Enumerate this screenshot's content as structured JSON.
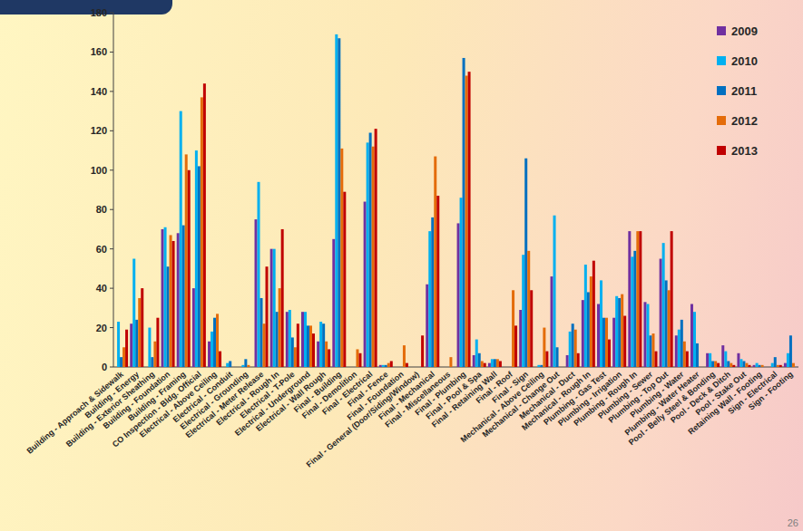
{
  "chart_data": {
    "type": "bar",
    "categories": [
      "Building - Approach & Sidewalk",
      "Building - Energy",
      "Building - Exterior Sheathing",
      "Building - Foundation",
      "Building - Framing",
      "CO Inspection - Bldg. Official",
      "Electrical - Above Ceiling",
      "Electrical - Conduit",
      "Electrical - Grounding",
      "Electrical - Meter Release",
      "Electrical - Rough In",
      "Electrical - T-Pole",
      "Electrical - Underground",
      "Electrical - Wall Rough",
      "Final - Building",
      "Final - Demolition",
      "Final - Electrical",
      "Final - Fence",
      "Final - Foundation",
      "Final - General (Door/Siding/Window)",
      "Final - Mechanical",
      "Final - Miscellaneous",
      "Final - Plumbing",
      "Final - Pool & Spa",
      "Final - Retaining Wall",
      "Final - Roof",
      "Final - Sign",
      "Mechanical - Above Ceiling",
      "Mechanical - Change Out",
      "Mechanical - Duct",
      "Mechanical - Rough In",
      "Plumbing - Gas Test",
      "Plumbing - Irrigation",
      "Plumbing - Rough In",
      "Plumbing - Sewer",
      "Plumbing - Top Out",
      "Plumbing - Water",
      "Plumbing - Water Heater",
      "Pool - Belly Steel & Bonding",
      "Pool - Deck & Ditch",
      "Pool - Stake Out",
      "Retaining Wall - Footing",
      "Sign - Electrical",
      "Sign - Footing"
    ],
    "series": [
      {
        "name": "2009",
        "color": "#7030a0",
        "values": [
          0,
          22,
          0,
          70,
          68,
          40,
          13,
          0,
          0,
          75,
          60,
          28,
          28,
          13,
          65,
          0,
          84,
          1,
          0,
          0,
          42,
          0,
          73,
          6,
          2,
          0,
          29,
          0,
          46,
          6,
          34,
          32,
          25,
          69,
          33,
          55,
          16,
          32,
          7,
          11,
          7,
          1,
          0,
          2
        ]
      },
      {
        "name": "2010",
        "color": "#00b0f0",
        "values": [
          23,
          55,
          20,
          71,
          130,
          110,
          18,
          2,
          1,
          94,
          60,
          29,
          28,
          23,
          169,
          0,
          114,
          1,
          0,
          0,
          69,
          0,
          86,
          14,
          4,
          0,
          57,
          1,
          77,
          18,
          52,
          44,
          36,
          56,
          32,
          63,
          19,
          28,
          7,
          8,
          4,
          2,
          2,
          7
        ]
      },
      {
        "name": "2011",
        "color": "#0070c0",
        "values": [
          5,
          24,
          5,
          51,
          72,
          102,
          25,
          3,
          4,
          35,
          28,
          15,
          21,
          22,
          167,
          0,
          119,
          1,
          0,
          0,
          76,
          0,
          157,
          7,
          4,
          0,
          106,
          1,
          10,
          22,
          38,
          25,
          35,
          59,
          16,
          44,
          24,
          12,
          3,
          3,
          3,
          1,
          5,
          16
        ]
      },
      {
        "name": "2012",
        "color": "#e46c0a",
        "values": [
          10,
          35,
          13,
          67,
          108,
          137,
          27,
          0,
          1,
          22,
          40,
          10,
          21,
          13,
          111,
          9,
          112,
          2,
          11,
          0,
          107,
          5,
          148,
          3,
          4,
          39,
          59,
          20,
          0,
          19,
          46,
          25,
          37,
          69,
          17,
          39,
          13,
          0,
          3,
          2,
          2,
          1,
          1,
          2
        ]
      },
      {
        "name": "2013",
        "color": "#c00000",
        "values": [
          19,
          40,
          25,
          64,
          100,
          144,
          8,
          0,
          0,
          51,
          70,
          22,
          17,
          9,
          89,
          7,
          121,
          3,
          2,
          16,
          87,
          0,
          150,
          2,
          3,
          21,
          39,
          8,
          0,
          7,
          54,
          14,
          26,
          69,
          8,
          69,
          8,
          0,
          2,
          1,
          1,
          0,
          1,
          0
        ]
      }
    ],
    "ylim": [
      0,
      180
    ],
    "yticks": [
      0,
      20,
      40,
      60,
      80,
      100,
      120,
      140,
      160,
      180
    ],
    "grid": false,
    "legend": "top-right"
  },
  "page": {
    "number": "26"
  }
}
